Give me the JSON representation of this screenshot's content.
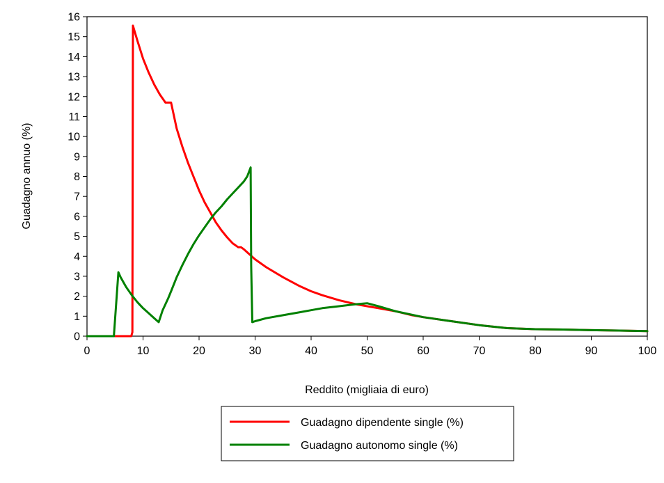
{
  "chart_data": {
    "type": "line",
    "title": "",
    "xlabel": "Reddito (migliaia di euro)",
    "ylabel": "Guadagno annuo (%)",
    "xlim": [
      0,
      100
    ],
    "ylim": [
      0,
      16
    ],
    "xticks": [
      0,
      10,
      20,
      30,
      40,
      50,
      60,
      70,
      80,
      90,
      100
    ],
    "yticks": [
      0,
      1,
      2,
      3,
      4,
      5,
      6,
      7,
      8,
      9,
      10,
      11,
      12,
      13,
      14,
      15,
      16
    ],
    "grid": false,
    "legend_position": "bottom-center",
    "series": [
      {
        "name": "Guadagno dipendente single (%)",
        "color": "#ff0000",
        "x": [
          0,
          7.9,
          8.1,
          8.2,
          9,
          10,
          11,
          12,
          13,
          14,
          15,
          16,
          17,
          18,
          19,
          20,
          21,
          22,
          23,
          24,
          25,
          26,
          27,
          27.5,
          28,
          29,
          30,
          32,
          35,
          38,
          40,
          42,
          45,
          48,
          50,
          52,
          55,
          58,
          60,
          65,
          70,
          75,
          80,
          85,
          90,
          95,
          100
        ],
        "y": [
          0,
          0,
          0.2,
          15.55,
          14.8,
          13.9,
          13.2,
          12.6,
          12.1,
          11.7,
          11.7,
          10.4,
          9.5,
          8.7,
          8.0,
          7.3,
          6.7,
          6.2,
          5.7,
          5.3,
          4.95,
          4.65,
          4.45,
          4.45,
          4.35,
          4.1,
          3.85,
          3.45,
          2.95,
          2.5,
          2.25,
          2.05,
          1.8,
          1.6,
          1.5,
          1.4,
          1.25,
          1.05,
          0.95,
          0.75,
          0.55,
          0.4,
          0.35,
          0.33,
          0.3,
          0.28,
          0.25
        ]
      },
      {
        "name": "Guadagno autonomo single (%)",
        "color": "#008000",
        "x": [
          0,
          4.8,
          5.6,
          6,
          7,
          8,
          9,
          10,
          11,
          12,
          12.8,
          13.5,
          14.5,
          15,
          16,
          17,
          18,
          19,
          20,
          21,
          22,
          23,
          24,
          25,
          26,
          27,
          28,
          28.6,
          29.2,
          29.3,
          29.5,
          30,
          32,
          35,
          38,
          40,
          42,
          45,
          48,
          50,
          52,
          55,
          60,
          65,
          70,
          75,
          80,
          85,
          90,
          95,
          100
        ],
        "y": [
          0,
          0,
          3.2,
          2.95,
          2.45,
          2.05,
          1.7,
          1.4,
          1.15,
          0.9,
          0.7,
          1.3,
          1.9,
          2.25,
          2.95,
          3.55,
          4.1,
          4.6,
          5.05,
          5.45,
          5.85,
          6.2,
          6.5,
          6.85,
          7.15,
          7.45,
          7.75,
          8.0,
          8.45,
          3.5,
          0.7,
          0.75,
          0.9,
          1.05,
          1.2,
          1.3,
          1.4,
          1.5,
          1.6,
          1.65,
          1.5,
          1.25,
          0.95,
          0.75,
          0.55,
          0.4,
          0.35,
          0.33,
          0.3,
          0.28,
          0.25
        ]
      }
    ]
  }
}
